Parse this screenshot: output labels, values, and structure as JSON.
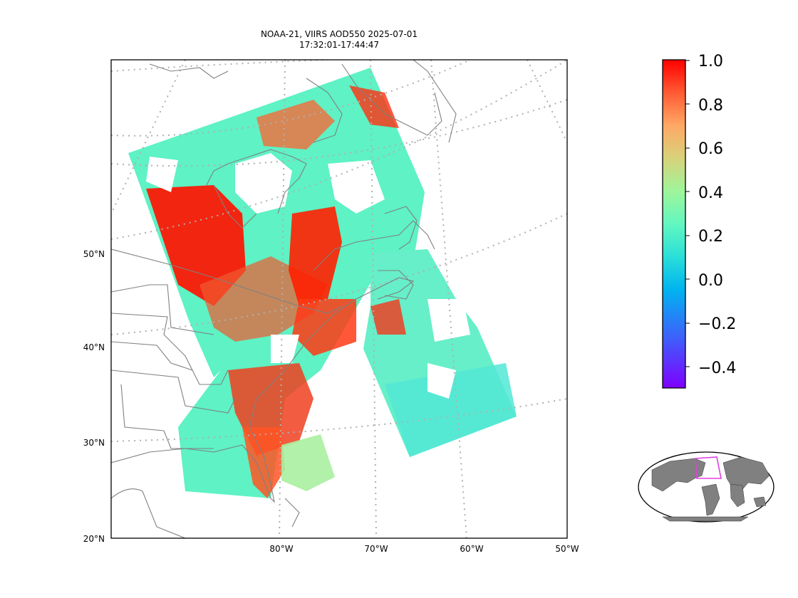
{
  "title": {
    "line1": "NOAA-21, VIIRS AOD550 2025-07-01",
    "line2": "17:32:01-17:44:47"
  },
  "map": {
    "lat_labels": [
      "50°N",
      "40°N",
      "30°N",
      "20°N"
    ],
    "lon_labels": [
      "80°W",
      "70°W",
      "60°W",
      "50°W"
    ],
    "graticule": "dotted",
    "coastline_color": "#808080",
    "swath_colormap": "rainbow"
  },
  "colorbar": {
    "ticks": [
      "1.0",
      "0.8",
      "0.6",
      "0.4",
      "0.2",
      "0.0",
      "−0.2",
      "−0.4"
    ],
    "vmin": -0.5,
    "vmax": 1.0
  },
  "inset": {
    "description_icon": "globe-locator-icon",
    "box_color": "#e040e0",
    "land_color": "#808080"
  }
}
